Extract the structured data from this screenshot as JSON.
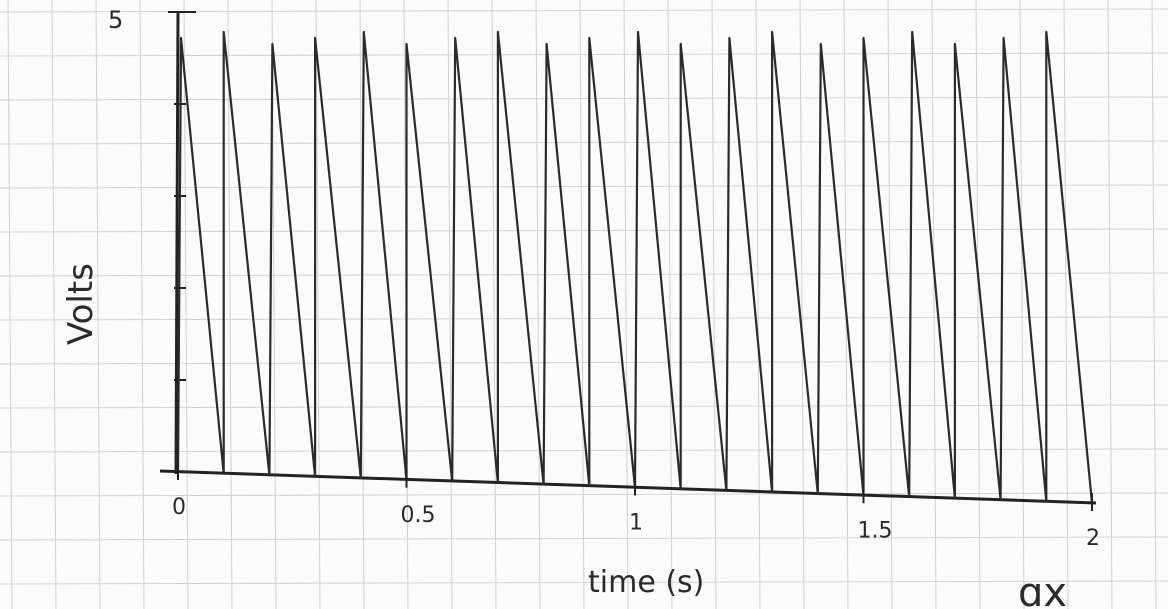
{
  "chart_data": {
    "type": "line",
    "title": "",
    "xlabel": "time (s)",
    "ylabel": "Volts",
    "xlim": [
      0,
      2
    ],
    "ylim": [
      0,
      5
    ],
    "x_ticks": [
      "0",
      "0.5",
      "1",
      "1.5",
      "2"
    ],
    "y_ticks": [
      "5"
    ],
    "grid": true,
    "series": [
      {
        "x": [
          0,
          0,
          0.1,
          0.1,
          0.2,
          0.2,
          0.3,
          0.3,
          0.4,
          0.4,
          0.5,
          0.5,
          0.6,
          0.6,
          0.7,
          0.7,
          0.8,
          0.8,
          0.9,
          0.9,
          1.0,
          1.0,
          1.1,
          1.1,
          1.2,
          1.2,
          1.3,
          1.3,
          1.4,
          1.4,
          1.5,
          1.5,
          1.6,
          1.6,
          1.7,
          1.7,
          1.8,
          1.8,
          1.9,
          1.9,
          2.0
        ],
        "y": [
          0,
          5,
          0,
          5,
          0,
          5,
          0,
          5,
          0,
          5,
          0,
          5,
          0,
          5,
          0,
          5,
          0,
          5,
          0,
          5,
          0,
          5,
          0,
          5,
          0,
          5,
          0,
          5,
          0,
          5,
          0,
          5,
          0,
          5,
          0,
          5,
          0,
          5,
          0,
          5,
          0
        ],
        "color": "#2b2b2b"
      }
    ]
  },
  "corner_mark": "ɑx"
}
